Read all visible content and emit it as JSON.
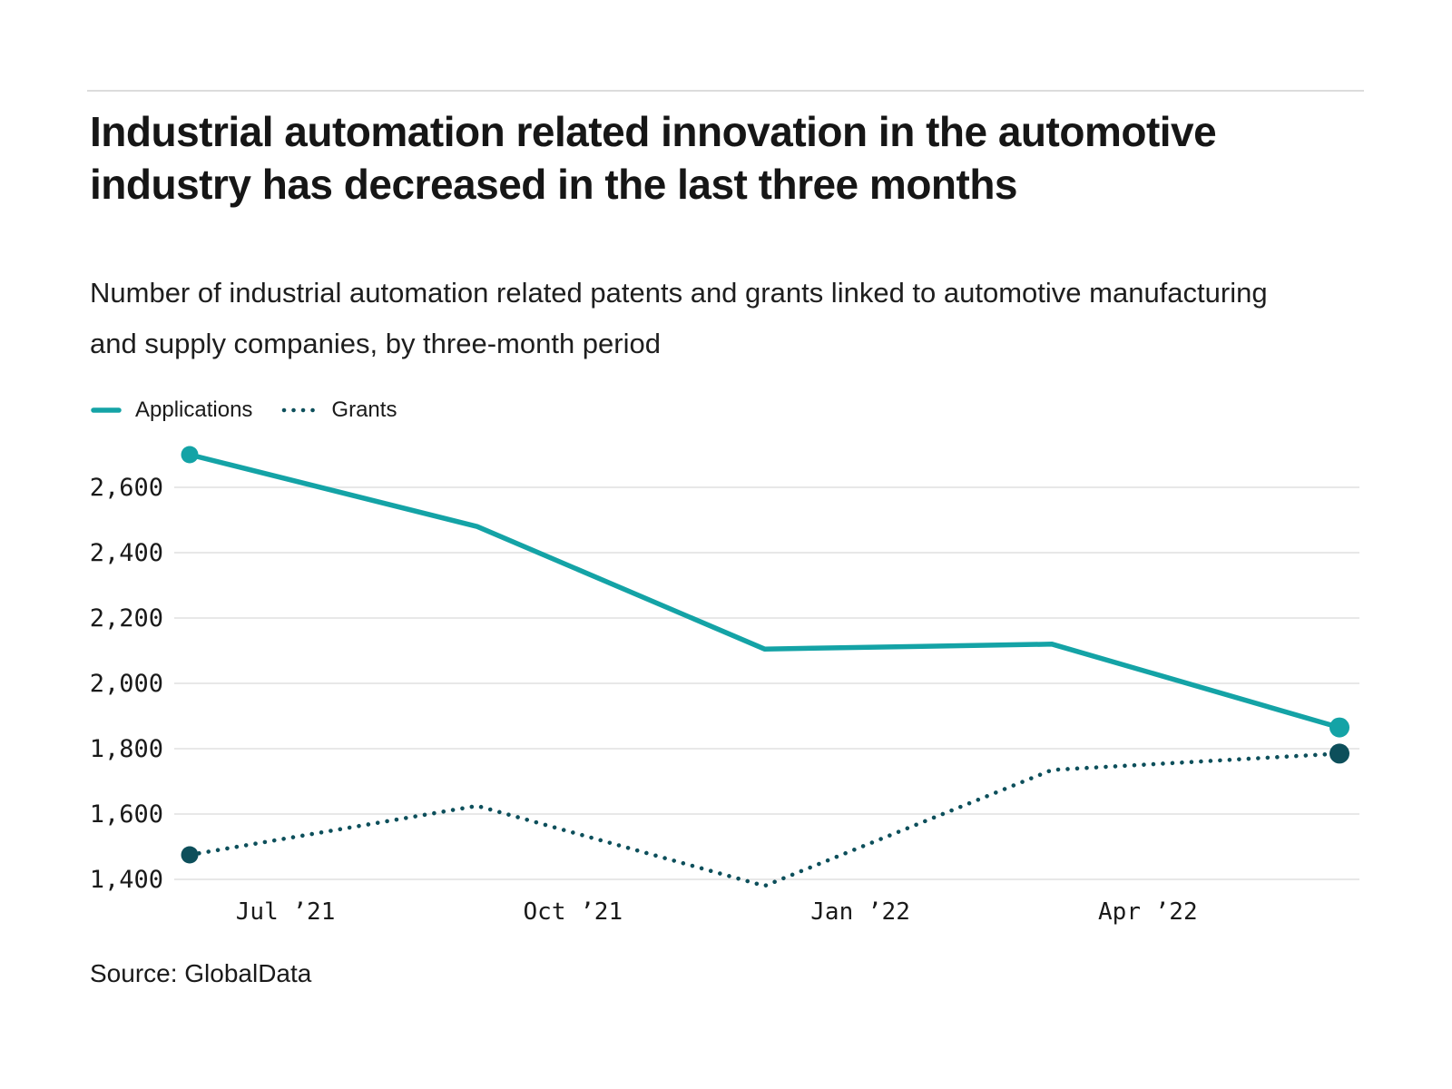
{
  "header": {
    "title": "Industrial automation related innovation in the automotive industry has decreased in the last three months",
    "subtitle": "Number of industrial automation related patents and grants linked to automotive manufacturing and supply companies, by three-month period"
  },
  "legend": {
    "items": [
      {
        "label": "Applications",
        "line_style": "solid",
        "color": "#14a3a6"
      },
      {
        "label": "Grants",
        "line_style": "dotted",
        "color": "#0d4f5b"
      }
    ]
  },
  "chart_data": {
    "type": "line",
    "title": "Industrial automation related innovation in the automotive industry has decreased in the last three months",
    "subtitle": "Number of industrial automation related patents and grants linked to automotive manufacturing and supply companies, by three-month period",
    "x_tick_labels": [
      "Jul ’21",
      "Oct ’21",
      "Jan ’22",
      "Apr ’22"
    ],
    "y_ticks": [
      2600,
      2400,
      2200,
      2000,
      1800,
      1600,
      1400
    ],
    "y_tick_labels": [
      "2,600",
      "2,400",
      "2,200",
      "2,000",
      "1,800",
      "1,600",
      "1,400"
    ],
    "series": [
      {
        "name": "Applications",
        "line_style": "solid",
        "color": "#14a3a6",
        "values": [
          2700,
          2480,
          2105,
          2120,
          1865
        ]
      },
      {
        "name": "Grants",
        "line_style": "dotted",
        "color": "#0d4f5b",
        "values": [
          1475,
          1625,
          1380,
          1735,
          1785
        ]
      }
    ],
    "ylim": [
      1400,
      2600
    ],
    "grid": "horizontal",
    "legend_position": "top-left",
    "markers": "first-and-last-point-only",
    "x_ticks_offset_between_points": true
  },
  "footer": {
    "source": "Source: GlobalData"
  },
  "colors": {
    "applications": "#14a3a6",
    "grants": "#0d4f5b",
    "gridline": "#e8e8e8",
    "divider": "#dcdcdc",
    "text": "#161616"
  }
}
